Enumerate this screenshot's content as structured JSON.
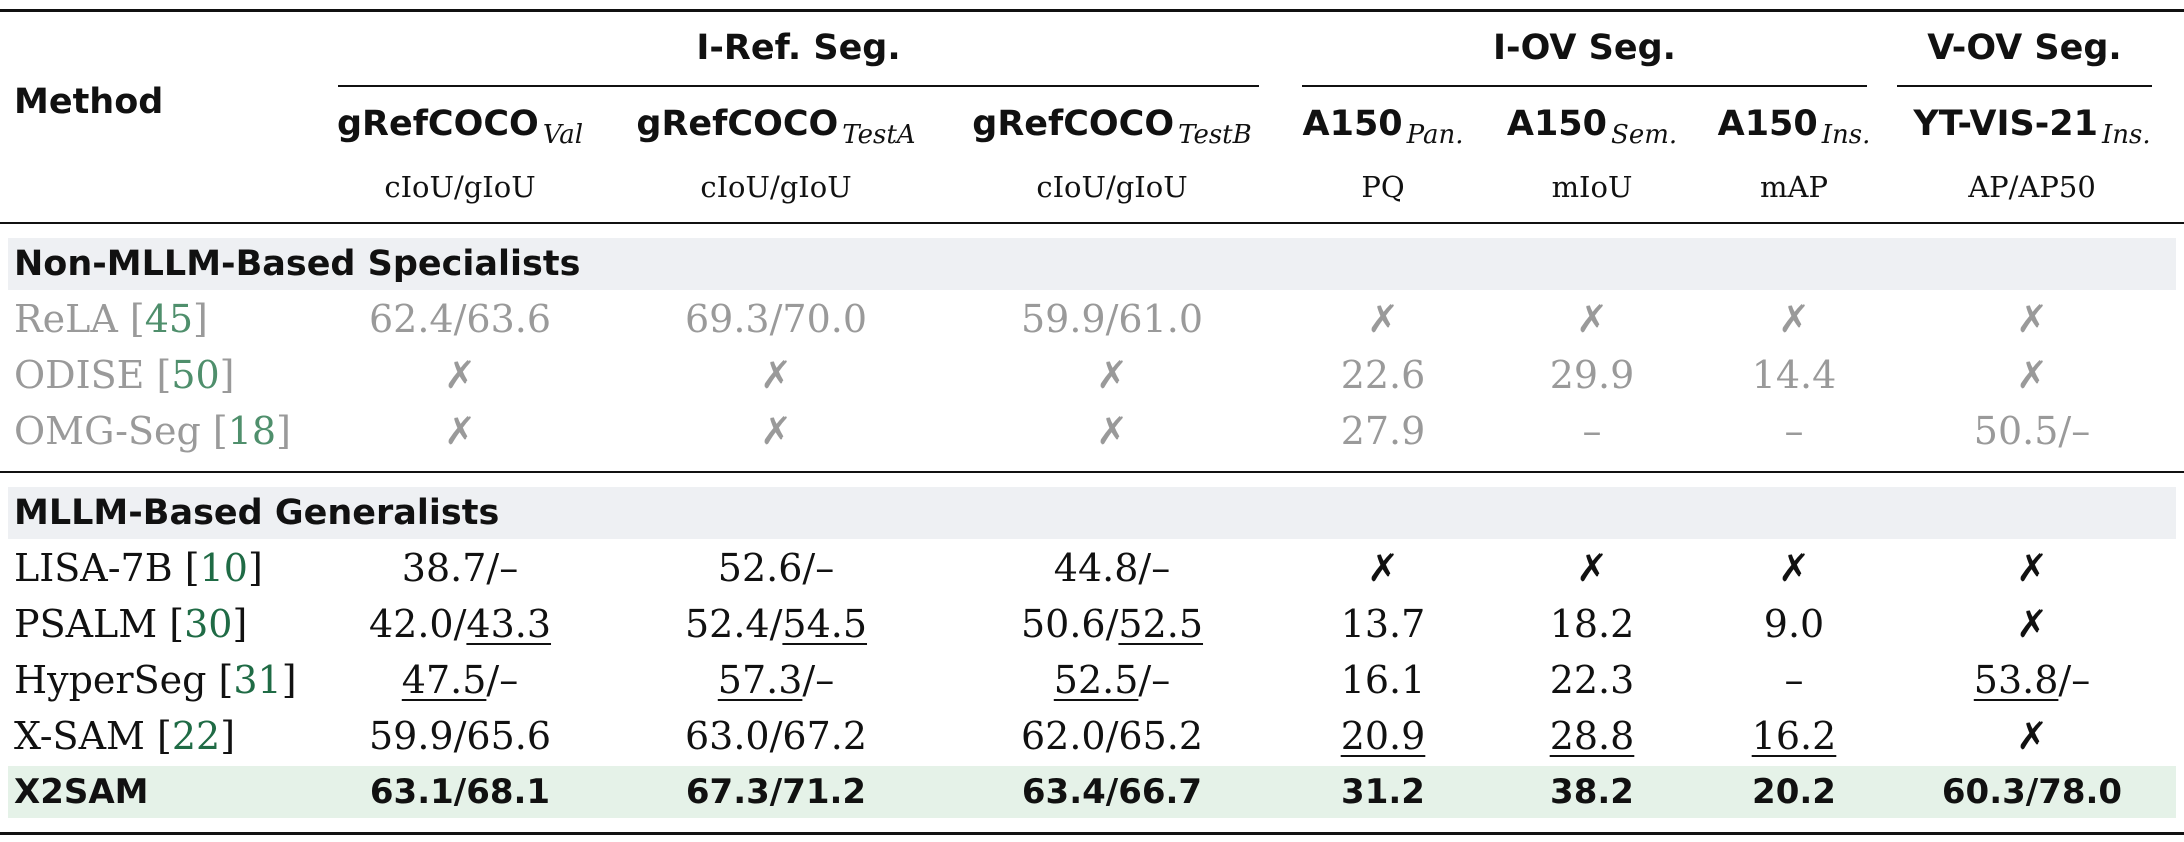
{
  "header": {
    "method": "Method",
    "groups": [
      {
        "title": "I-Ref. Seg.",
        "columns": [
          {
            "name": "gRefCOCO",
            "sub": "Val",
            "metric": "cIoU/gIoU"
          },
          {
            "name": "gRefCOCO",
            "sub": "TestA",
            "metric": "cIoU/gIoU"
          },
          {
            "name": "gRefCOCO",
            "sub": "TestB",
            "metric": "cIoU/gIoU"
          }
        ]
      },
      {
        "title": "I-OV Seg.",
        "columns": [
          {
            "name": "A150",
            "sub": "Pan.",
            "metric": "PQ"
          },
          {
            "name": "A150",
            "sub": "Sem.",
            "metric": "mIoU"
          },
          {
            "name": "A150",
            "sub": "Ins.",
            "metric": "mAP"
          }
        ]
      },
      {
        "title": "V-OV Seg.",
        "columns": [
          {
            "name": "YT-VIS-21",
            "sub": "Ins.",
            "metric": "AP/AP50"
          }
        ]
      }
    ]
  },
  "sections": [
    {
      "title": "Non-MLLM-Based Specialists",
      "muted": true,
      "rows": [
        {
          "method": [
            "ReLA [",
            {
              "text": "45",
              "cite": true
            },
            "]"
          ],
          "cells": [
            "62.4/63.6",
            "69.3/70.0",
            "59.9/61.0",
            "✗",
            "✗",
            "✗",
            "✗"
          ]
        },
        {
          "method": [
            "ODISE [",
            {
              "text": "50",
              "cite": true
            },
            "]"
          ],
          "cells": [
            "✗",
            "✗",
            "✗",
            "22.6",
            "29.9",
            "14.4",
            "✗"
          ]
        },
        {
          "method": [
            "OMG-Seg [",
            {
              "text": "18",
              "cite": true
            },
            "]"
          ],
          "cells": [
            "✗",
            "✗",
            "✗",
            "27.9",
            "–",
            "–",
            "50.5/–"
          ]
        }
      ]
    },
    {
      "title": "MLLM-Based Generalists",
      "rows": [
        {
          "method": [
            "LISA-7B [",
            {
              "text": "10",
              "cite": true
            },
            "]"
          ],
          "cells": [
            "38.7/–",
            "52.6/–",
            "44.8/–",
            "✗",
            "✗",
            "✗",
            "✗"
          ]
        },
        {
          "method": [
            "PSALM [",
            {
              "text": "30",
              "cite": true
            },
            "]"
          ],
          "cells": [
            [
              "42.0/",
              {
                "text": "43.3",
                "underline": true
              }
            ],
            [
              "52.4/",
              {
                "text": "54.5",
                "underline": true
              }
            ],
            [
              "50.6/",
              {
                "text": "52.5",
                "underline": true
              }
            ],
            "13.7",
            "18.2",
            "9.0",
            "✗"
          ]
        },
        {
          "method": [
            "HyperSeg [",
            {
              "text": "31",
              "cite": true
            },
            "]"
          ],
          "cells": [
            [
              {
                "text": "47.5",
                "underline": true
              },
              "/–"
            ],
            [
              {
                "text": "57.3",
                "underline": true
              },
              "/–"
            ],
            [
              {
                "text": "52.5",
                "underline": true
              },
              "/–"
            ],
            "16.1",
            "22.3",
            "–",
            [
              {
                "text": "53.8",
                "underline": true
              },
              "/–"
            ]
          ]
        },
        {
          "method": [
            "X-SAM [",
            {
              "text": "22",
              "cite": true
            },
            "]"
          ],
          "cells": [
            "59.9/65.6",
            "63.0/67.2",
            "62.0/65.2",
            [
              {
                "text": "20.9",
                "underline": true
              }
            ],
            [
              {
                "text": "28.8",
                "underline": true
              }
            ],
            [
              {
                "text": "16.2",
                "underline": true
              }
            ],
            "✗"
          ]
        },
        {
          "method": [
            "X2SAM"
          ],
          "highlight": true,
          "cells": [
            "63.1/68.1",
            "67.3/71.2",
            "63.4/66.7",
            "31.2",
            "38.2",
            "20.2",
            "60.3/78.0"
          ]
        }
      ]
    }
  ]
}
